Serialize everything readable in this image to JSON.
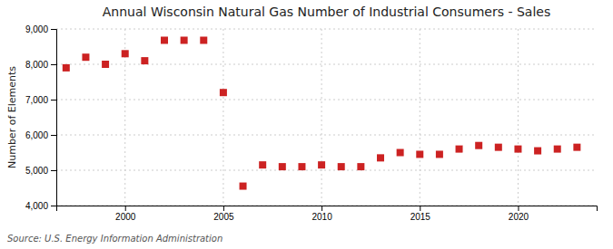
{
  "chart_data": {
    "type": "scatter",
    "title": "Annual Wisconsin Natural Gas Number of Industrial Consumers - Sales",
    "ylabel": "Number of Elements",
    "source": "Source: U.S. Energy Information Administration",
    "x": [
      1997,
      1998,
      1999,
      2000,
      2001,
      2002,
      2003,
      2004,
      2005,
      2006,
      2007,
      2008,
      2009,
      2010,
      2011,
      2012,
      2013,
      2014,
      2015,
      2016,
      2017,
      2018,
      2019,
      2020,
      2021,
      2022,
      2023
    ],
    "values": [
      7900,
      8200,
      8000,
      8300,
      8100,
      8680,
      8680,
      8680,
      7200,
      4550,
      5150,
      5100,
      5100,
      5150,
      5100,
      5100,
      5350,
      5500,
      5450,
      5450,
      5600,
      5700,
      5650,
      5600,
      5550,
      5600,
      5650
    ],
    "color": "#cc2222",
    "marker": "square",
    "xlim": [
      1996.5,
      2024
    ],
    "xticks": [
      2000,
      2005,
      2010,
      2015,
      2020
    ],
    "ylim": [
      4000,
      9000
    ],
    "yticks": [
      {
        "value": 4000,
        "label": "4,000"
      },
      {
        "value": 5000,
        "label": "5,000"
      },
      {
        "value": 6000,
        "label": "6,000"
      },
      {
        "value": 7000,
        "label": "7,000"
      },
      {
        "value": 8000,
        "label": "8,000"
      },
      {
        "value": 9000,
        "label": "9,000"
      }
    ],
    "grid": true
  }
}
